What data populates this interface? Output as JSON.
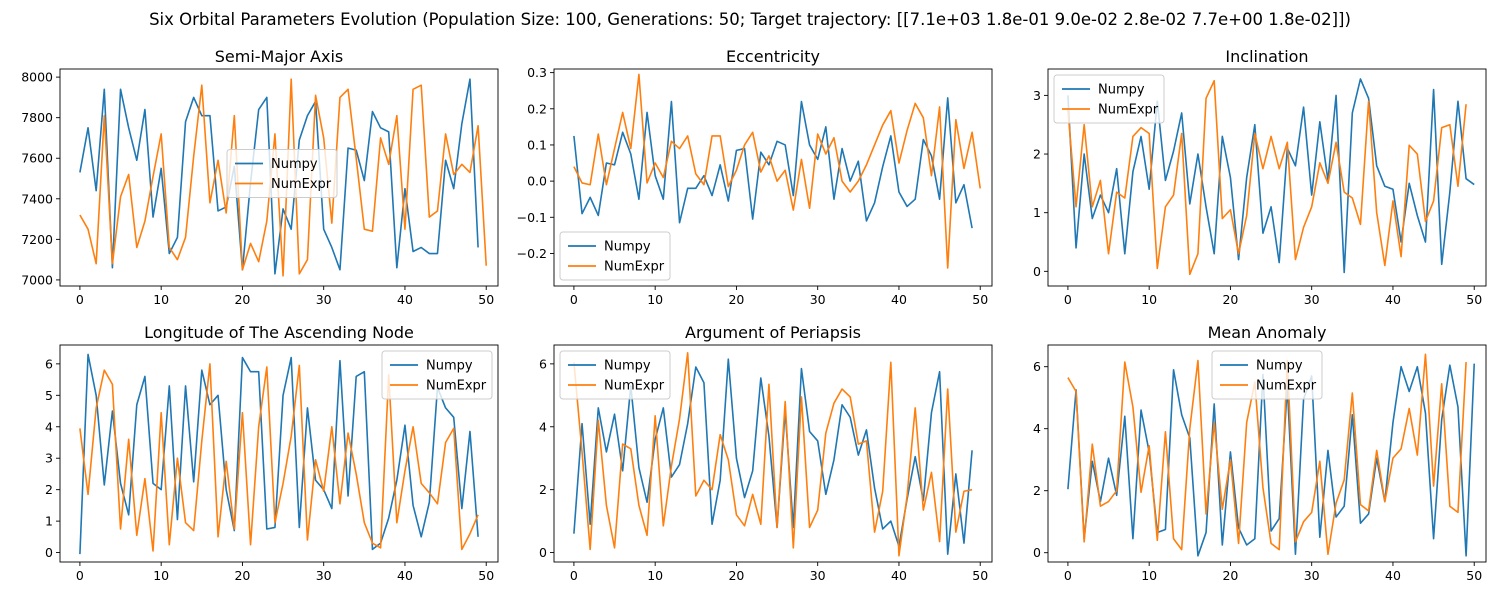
{
  "figure": {
    "title": "Six Orbital Parameters Evolution (Population Size: 100, Generations: 50; Target trajectory: [[7.1e+03 1.8e-01 9.0e-02 2.8e-02 7.7e+00 1.8e-02]])"
  },
  "series_colors": {
    "Numpy": "#1f77b4",
    "NumExpr": "#ff7f0e"
  },
  "chart_data": [
    {
      "type": "line",
      "title": "Semi-Major Axis",
      "xlim": [
        -2.45,
        51.45
      ],
      "ylim": [
        6970,
        8040
      ],
      "xticks": [
        0,
        10,
        20,
        30,
        40,
        50
      ],
      "xtick_labels": [
        "0",
        "10",
        "20",
        "30",
        "40",
        "50"
      ],
      "yticks": [
        7000,
        7200,
        7400,
        7600,
        7800,
        8000
      ],
      "ytick_labels": [
        "7000",
        "7200",
        "7400",
        "7600",
        "7800",
        "8000"
      ],
      "legend": "center",
      "series": [
        {
          "name": "Numpy",
          "values": [
            7530,
            7750,
            7440,
            7940,
            7060,
            7940,
            7750,
            7590,
            7840,
            7310,
            7550,
            7130,
            7210,
            7780,
            7900,
            7810,
            7810,
            7340,
            7360,
            7560,
            7050,
            7480,
            7840,
            7900,
            7030,
            7350,
            7250,
            7690,
            7810,
            7880,
            7250,
            7160,
            7050,
            7650,
            7640,
            7490,
            7830,
            7750,
            7730,
            7060,
            7450,
            7140,
            7160,
            7130,
            7130,
            7590,
            7450,
            7770,
            7990,
            7160
          ]
        },
        {
          "name": "NumExpr",
          "values": [
            7320,
            7250,
            7080,
            7810,
            7080,
            7410,
            7520,
            7160,
            7290,
            7510,
            7720,
            7160,
            7100,
            7210,
            7610,
            7960,
            7380,
            7590,
            7330,
            7810,
            7050,
            7180,
            7090,
            7290,
            7720,
            7020,
            7990,
            7030,
            7100,
            7910,
            7700,
            7280,
            7900,
            7940,
            7600,
            7250,
            7240,
            7700,
            7570,
            7810,
            7250,
            7940,
            7960,
            7310,
            7340,
            7720,
            7520,
            7570,
            7530,
            7760,
            7070
          ]
        }
      ]
    },
    {
      "type": "line",
      "title": "Eccentricity",
      "xlim": [
        -2.45,
        51.45
      ],
      "ylim": [
        -0.29,
        0.31
      ],
      "xticks": [
        0,
        10,
        20,
        30,
        40,
        50
      ],
      "xtick_labels": [
        "0",
        "10",
        "20",
        "30",
        "40",
        "50"
      ],
      "yticks": [
        -0.2,
        -0.1,
        0.0,
        0.1,
        0.2,
        0.3
      ],
      "ytick_labels": [
        "−0.2",
        "−0.1",
        "0.0",
        "0.1",
        "0.2",
        "0.3"
      ],
      "legend": "lower left",
      "series": [
        {
          "name": "Numpy",
          "values": [
            0.125,
            -0.09,
            -0.045,
            -0.095,
            0.05,
            0.045,
            0.135,
            0.075,
            -0.05,
            0.19,
            0.015,
            -0.05,
            0.22,
            -0.115,
            -0.02,
            -0.02,
            0.015,
            -0.04,
            0.045,
            -0.055,
            0.085,
            0.09,
            -0.105,
            0.08,
            0.045,
            0.11,
            0.1,
            -0.04,
            0.22,
            0.1,
            0.06,
            0.15,
            -0.05,
            0.09,
            0.0,
            0.055,
            -0.11,
            -0.06,
            0.04,
            0.125,
            -0.03,
            -0.07,
            -0.05,
            0.115,
            0.07,
            -0.05,
            0.23,
            -0.06,
            -0.01,
            -0.13
          ]
        },
        {
          "name": "NumExpr",
          "values": [
            0.04,
            -0.005,
            -0.01,
            0.13,
            -0.01,
            0.09,
            0.19,
            0.09,
            0.295,
            -0.005,
            0.05,
            0.01,
            0.11,
            0.09,
            0.125,
            0.02,
            -0.01,
            0.125,
            0.125,
            -0.015,
            0.03,
            0.1,
            0.135,
            0.025,
            0.07,
            0.0,
            0.03,
            -0.08,
            0.06,
            -0.075,
            0.13,
            0.075,
            0.12,
            0.0,
            -0.03,
            0.0,
            0.045,
            0.1,
            0.155,
            0.195,
            0.05,
            0.14,
            0.215,
            0.175,
            0.015,
            0.205,
            -0.24,
            0.17,
            0.035,
            0.135,
            -0.02
          ]
        }
      ]
    },
    {
      "type": "line",
      "title": "Inclination",
      "xlim": [
        -2.45,
        51.45
      ],
      "ylim": [
        -0.25,
        3.45
      ],
      "xticks": [
        0,
        10,
        20,
        30,
        40,
        50
      ],
      "xtick_labels": [
        "0",
        "10",
        "20",
        "30",
        "40",
        "50"
      ],
      "yticks": [
        0,
        1,
        2,
        3
      ],
      "ytick_labels": [
        "0",
        "1",
        "2",
        "3"
      ],
      "legend": "upper left",
      "series": [
        {
          "name": "Numpy",
          "values": [
            3.0,
            0.4,
            2.0,
            0.9,
            1.3,
            1.0,
            1.75,
            0.3,
            1.7,
            2.3,
            1.4,
            2.9,
            1.55,
            2.05,
            2.7,
            1.15,
            2.0,
            1.1,
            0.3,
            2.3,
            1.6,
            0.2,
            1.6,
            2.5,
            0.65,
            1.1,
            0.15,
            2.1,
            1.8,
            2.8,
            1.3,
            2.55,
            1.55,
            3.0,
            -0.02,
            2.7,
            3.28,
            2.95,
            1.8,
            1.45,
            1.4,
            0.5,
            1.5,
            0.95,
            0.5,
            3.1,
            0.12,
            1.35,
            2.9,
            1.58,
            1.48
          ]
        },
        {
          "name": "NumExpr",
          "values": [
            2.75,
            1.1,
            2.5,
            1.1,
            1.55,
            0.3,
            1.35,
            1.25,
            2.3,
            2.45,
            2.35,
            0.05,
            1.1,
            1.3,
            2.35,
            -0.05,
            0.3,
            2.95,
            3.25,
            0.9,
            1.05,
            0.3,
            0.95,
            2.35,
            1.75,
            2.3,
            1.75,
            2.2,
            0.2,
            0.75,
            1.1,
            1.85,
            1.5,
            2.2,
            1.35,
            1.25,
            0.8,
            2.9,
            1.0,
            0.1,
            1.2,
            0.25,
            2.15,
            2.0,
            0.85,
            1.2,
            2.45,
            2.5,
            1.45,
            2.85
          ]
        }
      ]
    },
    {
      "type": "line",
      "title": "Longitude of The Ascending Node",
      "xlim": [
        -2.45,
        51.45
      ],
      "ylim": [
        -0.3,
        6.6
      ],
      "xticks": [
        0,
        10,
        20,
        30,
        40,
        50
      ],
      "xtick_labels": [
        "0",
        "10",
        "20",
        "30",
        "40",
        "50"
      ],
      "yticks": [
        0,
        1,
        2,
        3,
        4,
        5,
        6
      ],
      "ytick_labels": [
        "0",
        "1",
        "2",
        "3",
        "4",
        "5",
        "6"
      ],
      "legend": "upper right",
      "series": [
        {
          "name": "Numpy",
          "values": [
            -0.05,
            6.3,
            5.0,
            2.15,
            4.5,
            2.2,
            1.2,
            4.7,
            5.6,
            2.2,
            2.0,
            5.3,
            1.05,
            5.3,
            2.25,
            5.8,
            4.7,
            5.0,
            2.0,
            0.7,
            6.2,
            5.75,
            5.75,
            0.75,
            0.8,
            5.0,
            6.2,
            0.8,
            4.6,
            2.3,
            2.0,
            1.4,
            6.1,
            1.8,
            5.6,
            5.75,
            0.1,
            0.3,
            1.1,
            2.3,
            4.05,
            1.5,
            0.5,
            1.6,
            5.25,
            4.6,
            4.3,
            1.4,
            3.85,
            0.5
          ]
        },
        {
          "name": "NumExpr",
          "values": [
            3.95,
            1.85,
            4.6,
            5.8,
            5.35,
            0.75,
            3.6,
            0.55,
            2.35,
            0.05,
            4.45,
            0.25,
            3.0,
            0.95,
            0.7,
            3.55,
            6.0,
            0.5,
            2.9,
            0.75,
            4.45,
            0.25,
            4.0,
            5.9,
            0.95,
            2.2,
            3.7,
            5.95,
            0.4,
            2.95,
            1.95,
            4.0,
            1.55,
            3.8,
            2.5,
            0.95,
            0.3,
            0.15,
            5.65,
            0.95,
            2.6,
            4.0,
            2.2,
            1.9,
            1.55,
            3.5,
            3.95,
            0.1,
            0.6,
            1.2
          ]
        }
      ]
    },
    {
      "type": "line",
      "title": "Argument of Periapsis",
      "xlim": [
        -2.45,
        51.45
      ],
      "ylim": [
        -0.3,
        6.6
      ],
      "xticks": [
        0,
        10,
        20,
        30,
        40,
        50
      ],
      "xtick_labels": [
        "0",
        "10",
        "20",
        "30",
        "40",
        "50"
      ],
      "yticks": [
        0,
        2,
        4,
        6
      ],
      "ytick_labels": [
        "0",
        "2",
        "4",
        "6"
      ],
      "legend": "upper left",
      "series": [
        {
          "name": "Numpy",
          "values": [
            0.6,
            4.1,
            0.9,
            4.6,
            3.2,
            4.4,
            2.6,
            5.3,
            2.7,
            1.6,
            3.6,
            4.6,
            2.4,
            2.8,
            4.1,
            5.9,
            5.4,
            0.9,
            2.3,
            6.15,
            3.0,
            1.75,
            2.6,
            5.55,
            3.7,
            0.8,
            4.5,
            0.8,
            5.85,
            3.85,
            3.55,
            1.85,
            2.95,
            4.7,
            4.3,
            3.1,
            3.9,
            2.05,
            0.75,
            1.0,
            0.2,
            1.7,
            3.05,
            1.65,
            4.45,
            5.75,
            -0.05,
            2.5,
            0.3,
            3.25
          ]
        },
        {
          "name": "NumExpr",
          "values": [
            6.05,
            3.2,
            0.1,
            4.2,
            1.5,
            0.15,
            3.45,
            3.3,
            1.5,
            0.55,
            4.35,
            0.85,
            2.75,
            4.25,
            6.35,
            1.8,
            2.3,
            2.0,
            3.75,
            2.95,
            1.2,
            0.85,
            1.85,
            0.9,
            5.35,
            0.8,
            4.8,
            0.15,
            4.95,
            0.8,
            1.35,
            3.8,
            4.75,
            5.2,
            4.95,
            3.45,
            3.55,
            0.65,
            1.95,
            6.05,
            -0.1,
            1.8,
            4.6,
            1.35,
            2.55,
            0.35,
            5.2,
            0.65,
            1.95,
            2.0
          ]
        }
      ]
    },
    {
      "type": "line",
      "title": "Mean Anomaly",
      "xlim": [
        -2.45,
        51.45
      ],
      "ylim": [
        -0.3,
        6.7
      ],
      "xticks": [
        0,
        10,
        20,
        30,
        40,
        50
      ],
      "xtick_labels": [
        "0",
        "10",
        "20",
        "30",
        "40",
        "50"
      ],
      "yticks": [
        0,
        2,
        4,
        6
      ],
      "ytick_labels": [
        "0",
        "2",
        "4",
        "6"
      ],
      "legend": "upper center",
      "series": [
        {
          "name": "Numpy",
          "values": [
            2.05,
            5.25,
            0.45,
            2.95,
            1.65,
            3.05,
            1.85,
            4.4,
            0.45,
            4.6,
            3.25,
            0.65,
            0.75,
            5.9,
            4.45,
            3.7,
            -0.1,
            0.65,
            4.8,
            0.25,
            3.25,
            0.8,
            0.25,
            0.45,
            5.75,
            0.7,
            1.1,
            5.35,
            -0.05,
            4.95,
            5.7,
            0.5,
            3.3,
            1.15,
            1.5,
            4.45,
            0.95,
            1.25,
            3.05,
            1.65,
            4.2,
            6.0,
            5.2,
            6.0,
            4.5,
            0.45,
            4.3,
            6.05,
            4.7,
            -0.1,
            6.1
          ]
        },
        {
          "name": "NumExpr",
          "values": [
            5.65,
            5.2,
            0.35,
            3.5,
            1.5,
            1.65,
            2.0,
            6.15,
            4.7,
            1.95,
            3.45,
            0.4,
            3.9,
            0.45,
            0.1,
            4.0,
            6.2,
            1.25,
            4.2,
            1.4,
            3.0,
            0.3,
            4.2,
            5.5,
            2.1,
            0.3,
            0.1,
            6.2,
            0.35,
            1.0,
            1.3,
            2.95,
            -0.05,
            1.6,
            2.35,
            5.15,
            1.55,
            1.35,
            3.3,
            1.65,
            3.05,
            3.35,
            4.65,
            3.15,
            6.4,
            2.15,
            5.45,
            1.5,
            1.3,
            6.15
          ]
        }
      ]
    }
  ]
}
